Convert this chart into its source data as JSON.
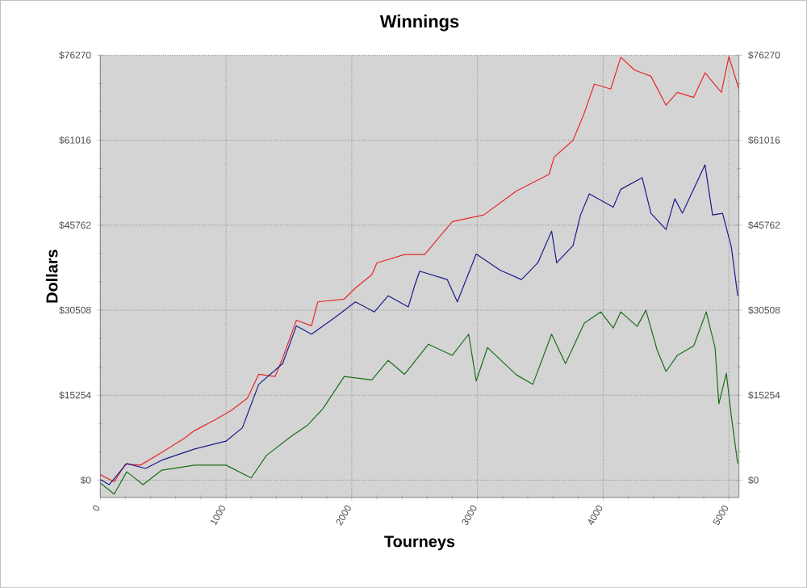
{
  "chart_data": {
    "type": "line",
    "title": "Winnings",
    "xlabel": "Tourneys",
    "ylabel": "Dollars",
    "xlim": [
      0,
      5080
    ],
    "xticks": [
      0,
      1000,
      2000,
      3000,
      4000,
      5000
    ],
    "ylim": [
      -3100,
      76270
    ],
    "yticks": [
      {
        "value": 0,
        "label": "$0"
      },
      {
        "value": 15254,
        "label": "$15254"
      },
      {
        "value": 30508,
        "label": "$30508"
      },
      {
        "value": 45762,
        "label": "$45762"
      },
      {
        "value": 61016,
        "label": "$61016"
      },
      {
        "value": 76270,
        "label": "$76270"
      }
    ],
    "y2lim": [
      -3100,
      76270
    ],
    "y2ticks": [
      {
        "value": 0,
        "label": "$0"
      },
      {
        "value": 15254,
        "label": "$15254"
      },
      {
        "value": 30508,
        "label": "$30508"
      },
      {
        "value": 45762,
        "label": "$45762"
      },
      {
        "value": 61016,
        "label": "$61016"
      },
      {
        "value": 76270,
        "label": "$76270"
      }
    ],
    "grid": true,
    "marker": "none",
    "line_style": "solid",
    "series": [
      {
        "color": "#e8282a",
        "x": [
          0,
          110,
          200,
          320,
          490,
          660,
          750,
          910,
          1040,
          1170,
          1260,
          1390,
          1450,
          1560,
          1680,
          1730,
          1940,
          2030,
          2160,
          2200,
          2420,
          2580,
          2800,
          3050,
          3310,
          3570,
          3610,
          3760,
          3850,
          3930,
          4060,
          4140,
          4250,
          4380,
          4500,
          4590,
          4720,
          4810,
          4940,
          5000,
          5080
        ],
        "values": [
          1000,
          -300,
          2900,
          2700,
          5000,
          7400,
          8900,
          10800,
          12500,
          14700,
          19000,
          18600,
          21900,
          28700,
          27700,
          32000,
          32500,
          34500,
          36900,
          39000,
          40500,
          40500,
          46400,
          47600,
          51900,
          54900,
          58000,
          61000,
          65900,
          71100,
          70200,
          75900,
          73600,
          72500,
          67300,
          69600,
          68700,
          73100,
          69600,
          76000,
          70200
        ]
      },
      {
        "color": "#1a1a8c",
        "x": [
          0,
          70,
          210,
          360,
          490,
          750,
          1000,
          1130,
          1260,
          1450,
          1560,
          1680,
          1860,
          2030,
          2180,
          2290,
          2450,
          2500,
          2540,
          2760,
          2840,
          2990,
          3180,
          3350,
          3480,
          3590,
          3630,
          3760,
          3820,
          3890,
          4080,
          4140,
          4310,
          4380,
          4500,
          4570,
          4630,
          4810,
          4870,
          4950,
          5020,
          5070
        ],
        "values": [
          100,
          -800,
          3000,
          2100,
          3600,
          5600,
          7000,
          9400,
          17200,
          20900,
          27700,
          26200,
          29100,
          32000,
          30200,
          33100,
          31100,
          34900,
          37500,
          36000,
          32000,
          40600,
          37700,
          36000,
          39000,
          44700,
          39000,
          42100,
          47600,
          51400,
          49000,
          52200,
          54300,
          47900,
          45000,
          50500,
          47900,
          56600,
          47600,
          47900,
          41800,
          33100
        ]
      },
      {
        "color": "#1a6e1a",
        "x": [
          0,
          110,
          210,
          340,
          490,
          750,
          1000,
          1200,
          1320,
          1520,
          1650,
          1770,
          1940,
          2160,
          2290,
          2420,
          2610,
          2800,
          2930,
          2990,
          3080,
          3310,
          3440,
          3590,
          3700,
          3850,
          3980,
          4080,
          4140,
          4270,
          4340,
          4430,
          4500,
          4590,
          4720,
          4820,
          4890,
          4920,
          4980,
          5020,
          5070
        ],
        "values": [
          -500,
          -2500,
          1500,
          -800,
          1800,
          2700,
          2700,
          400,
          4400,
          7900,
          9900,
          12800,
          18600,
          18000,
          21500,
          19000,
          24400,
          22400,
          26200,
          17800,
          23800,
          18900,
          17200,
          26200,
          20900,
          28200,
          30200,
          27300,
          30200,
          27600,
          30500,
          23300,
          19500,
          22400,
          24100,
          30200,
          23800,
          13700,
          19200,
          11400,
          3000
        ]
      }
    ]
  }
}
